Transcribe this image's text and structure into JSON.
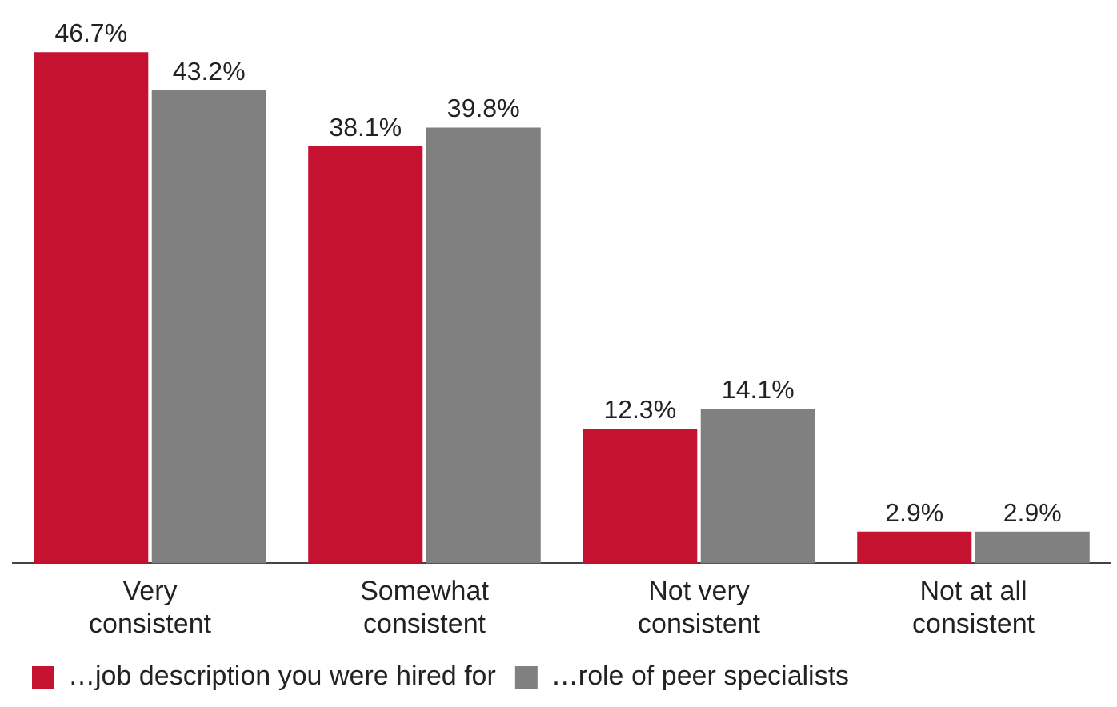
{
  "chart_data": {
    "type": "bar",
    "categories": [
      "Very consistent",
      "Somewhat consistent",
      "Not very consistent",
      "Not at all consistent"
    ],
    "series": [
      {
        "name": "…job description you were hired for",
        "color": "#c41230",
        "values": [
          46.7,
          38.1,
          12.3,
          2.9
        ],
        "value_labels": [
          "46.7%",
          "38.1%",
          "12.3%",
          "2.9%"
        ]
      },
      {
        "name": "…role of peer specialists",
        "color": "#808080",
        "values": [
          43.2,
          39.8,
          14.1,
          2.9
        ],
        "value_labels": [
          "43.2%",
          "39.8%",
          "14.1%",
          "2.9%"
        ]
      }
    ],
    "grid": false,
    "legend": "bottom",
    "tick_labels": "x"
  }
}
